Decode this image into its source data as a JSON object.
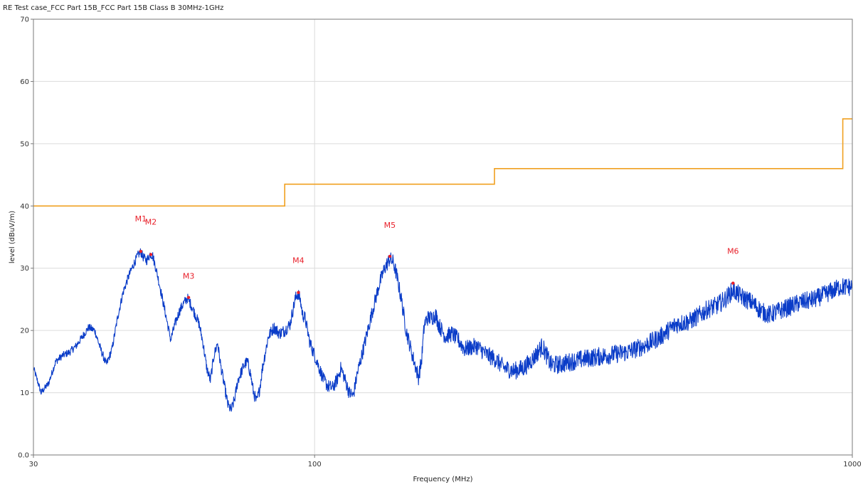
{
  "chart_data": {
    "type": "line",
    "title": "RE Test case_FCC Part 15B_FCC Part 15B  Class B 30MHz-1GHz",
    "xlabel": "Frequency (MHz)",
    "ylabel": "level (dBuV/m)",
    "x_scale": "log",
    "xlim": [
      30,
      1000
    ],
    "ylim": [
      0,
      70
    ],
    "x_ticks": [
      {
        "value": 30,
        "label": "30"
      },
      {
        "value": 100,
        "label": "100"
      },
      {
        "value": 1000,
        "label": "1000"
      }
    ],
    "y_ticks": [
      {
        "value": 0,
        "label": "0.0"
      },
      {
        "value": 10,
        "label": "10"
      },
      {
        "value": 20,
        "label": "20"
      },
      {
        "value": 30,
        "label": "30"
      },
      {
        "value": 40,
        "label": "40"
      },
      {
        "value": 50,
        "label": "50"
      },
      {
        "value": 60,
        "label": "60"
      },
      {
        "value": 70,
        "label": "70"
      }
    ],
    "grid": true,
    "legend": "none",
    "series": [
      {
        "role": "limit",
        "color": "#f0a020",
        "step": true,
        "points": [
          [
            30,
            40
          ],
          [
            88,
            40
          ],
          [
            88,
            43.5
          ],
          [
            216,
            43.5
          ],
          [
            216,
            46
          ],
          [
            960,
            46
          ],
          [
            960,
            54
          ],
          [
            1000,
            54
          ]
        ]
      },
      {
        "role": "measurement",
        "color": "#0a3cc8",
        "noise_band": 1.5,
        "points": [
          [
            30,
            14
          ],
          [
            30.5,
            12
          ],
          [
            31,
            10
          ],
          [
            32,
            11.5
          ],
          [
            33,
            15
          ],
          [
            34,
            16
          ],
          [
            35,
            16.5
          ],
          [
            36,
            17.5
          ],
          [
            37,
            19
          ],
          [
            38,
            20.5
          ],
          [
            39,
            20
          ],
          [
            40,
            17
          ],
          [
            41,
            14.5
          ],
          [
            42,
            17
          ],
          [
            43,
            22
          ],
          [
            44,
            26
          ],
          [
            45,
            28.5
          ],
          [
            46,
            30.5
          ],
          [
            47,
            32.2
          ],
          [
            47.5,
            32.6
          ],
          [
            48,
            31.8
          ],
          [
            48.7,
            31.2
          ],
          [
            49.5,
            32.3
          ],
          [
            50,
            32
          ],
          [
            51,
            29
          ],
          [
            52,
            25.5
          ],
          [
            53,
            22
          ],
          [
            54,
            18.5
          ],
          [
            55,
            21
          ],
          [
            56,
            23
          ],
          [
            57,
            24.3
          ],
          [
            58,
            25.2
          ],
          [
            59,
            24
          ],
          [
            60,
            22.5
          ],
          [
            61,
            21
          ],
          [
            62,
            18
          ],
          [
            63,
            14
          ],
          [
            64,
            12
          ],
          [
            65,
            16
          ],
          [
            66,
            18
          ],
          [
            67,
            14
          ],
          [
            68,
            11
          ],
          [
            69,
            8
          ],
          [
            70,
            7.2
          ],
          [
            71,
            9
          ],
          [
            72,
            12
          ],
          [
            74,
            14.5
          ],
          [
            75,
            15
          ],
          [
            76,
            13
          ],
          [
            77,
            10
          ],
          [
            78,
            8.5
          ],
          [
            79,
            10.5
          ],
          [
            80,
            14
          ],
          [
            82,
            19
          ],
          [
            84,
            20.5
          ],
          [
            86,
            19.5
          ],
          [
            88,
            20
          ],
          [
            90,
            21
          ],
          [
            91,
            23
          ],
          [
            92,
            25
          ],
          [
            93,
            26
          ],
          [
            94,
            25
          ],
          [
            95,
            22.5
          ],
          [
            96,
            22
          ],
          [
            97,
            20
          ],
          [
            98,
            18
          ],
          [
            100,
            16
          ],
          [
            102,
            14
          ],
          [
            104,
            12
          ],
          [
            106,
            11
          ],
          [
            108,
            10.8
          ],
          [
            110,
            12
          ],
          [
            112,
            14
          ],
          [
            114,
            12
          ],
          [
            116,
            10
          ],
          [
            118,
            9.5
          ],
          [
            120,
            13
          ],
          [
            124,
            18
          ],
          [
            128,
            23
          ],
          [
            132,
            27.5
          ],
          [
            135,
            30
          ],
          [
            138,
            31.5
          ],
          [
            140,
            31
          ],
          [
            142,
            29
          ],
          [
            145,
            25
          ],
          [
            148,
            20
          ],
          [
            152,
            16
          ],
          [
            156,
            12.5
          ],
          [
            158,
            15
          ],
          [
            160,
            21
          ],
          [
            162,
            22
          ],
          [
            165,
            22
          ],
          [
            168,
            22.5
          ],
          [
            170,
            21
          ],
          [
            175,
            19
          ],
          [
            180,
            19.5
          ],
          [
            185,
            18.5
          ],
          [
            190,
            17
          ],
          [
            200,
            17.5
          ],
          [
            210,
            16
          ],
          [
            216,
            15.5
          ],
          [
            225,
            14
          ],
          [
            235,
            13.5
          ],
          [
            245,
            14
          ],
          [
            255,
            15.5
          ],
          [
            265,
            17.5
          ],
          [
            270,
            16
          ],
          [
            275,
            14.5
          ],
          [
            285,
            14.5
          ],
          [
            300,
            15
          ],
          [
            320,
            15.5
          ],
          [
            350,
            16
          ],
          [
            380,
            16.5
          ],
          [
            410,
            17.5
          ],
          [
            440,
            19
          ],
          [
            470,
            21
          ],
          [
            500,
            21.5
          ],
          [
            520,
            22.5
          ],
          [
            540,
            23.5
          ],
          [
            560,
            24
          ],
          [
            580,
            25
          ],
          [
            600,
            26.5
          ],
          [
            620,
            25.5
          ],
          [
            650,
            24.5
          ],
          [
            680,
            23
          ],
          [
            700,
            22.5
          ],
          [
            750,
            23.5
          ],
          [
            800,
            24.5
          ],
          [
            850,
            25
          ],
          [
            900,
            26
          ],
          [
            950,
            27
          ],
          [
            1000,
            27
          ]
        ]
      }
    ],
    "markers": [
      {
        "label": "M1",
        "x": 47.5,
        "y": 32.7,
        "label_y": 37.5,
        "color": "#e8202a"
      },
      {
        "label": "M2",
        "x": 49.6,
        "y": 32.2,
        "label_y": 37.0,
        "color": "#e8202a"
      },
      {
        "label": "M3",
        "x": 58.3,
        "y": 25.3,
        "label_y": 28.3,
        "color": "#e8202a"
      },
      {
        "label": "M4",
        "x": 93.3,
        "y": 26.1,
        "label_y": 30.8,
        "color": "#e8202a"
      },
      {
        "label": "M5",
        "x": 138,
        "y": 31.9,
        "label_y": 36.5,
        "color": "#e8202a"
      },
      {
        "label": "M6",
        "x": 600,
        "y": 27.6,
        "label_y": 32.3,
        "color": "#e8202a"
      }
    ]
  }
}
